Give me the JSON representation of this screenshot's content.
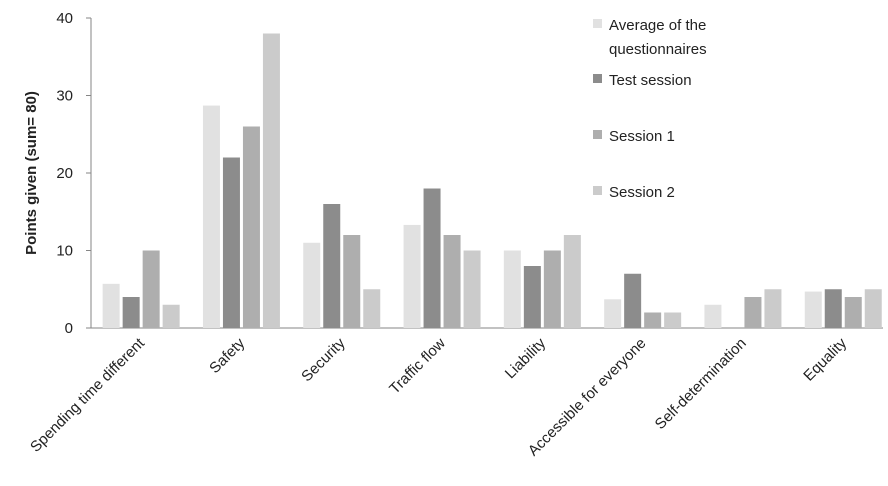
{
  "chart_data": {
    "type": "bar",
    "title": "",
    "xlabel": "",
    "ylabel": "Points given (sum= 80)",
    "ylim": [
      0,
      40
    ],
    "yticks": [
      0,
      10,
      20,
      30,
      40
    ],
    "grid": false,
    "legend_position": "top-right",
    "categories": [
      "Spending time different",
      "Safety",
      "Security",
      "Traffic flow",
      "Liability",
      "Accessible for everyone",
      "Self-determination",
      "Equality"
    ],
    "series": [
      {
        "name": "Average of the questionnaires",
        "legend_lines": [
          "Average of the",
          "questionnaires"
        ],
        "color": "#e1e1e1",
        "values": [
          5.7,
          28.7,
          11,
          13.3,
          10,
          3.7,
          3,
          4.7
        ]
      },
      {
        "name": "Test session",
        "legend_lines": [
          "Test session"
        ],
        "color": "#8c8c8c",
        "values": [
          4,
          22,
          16,
          18,
          8,
          7,
          0,
          5
        ]
      },
      {
        "name": "Session 1",
        "legend_lines": [
          "Session 1"
        ],
        "color": "#aeaeae",
        "values": [
          10,
          26,
          12,
          12,
          10,
          2,
          4,
          4
        ]
      },
      {
        "name": "Session 2",
        "legend_lines": [
          "Session 2"
        ],
        "color": "#cbcbcb",
        "values": [
          3,
          38,
          5,
          10,
          12,
          2,
          5,
          5
        ]
      }
    ]
  }
}
